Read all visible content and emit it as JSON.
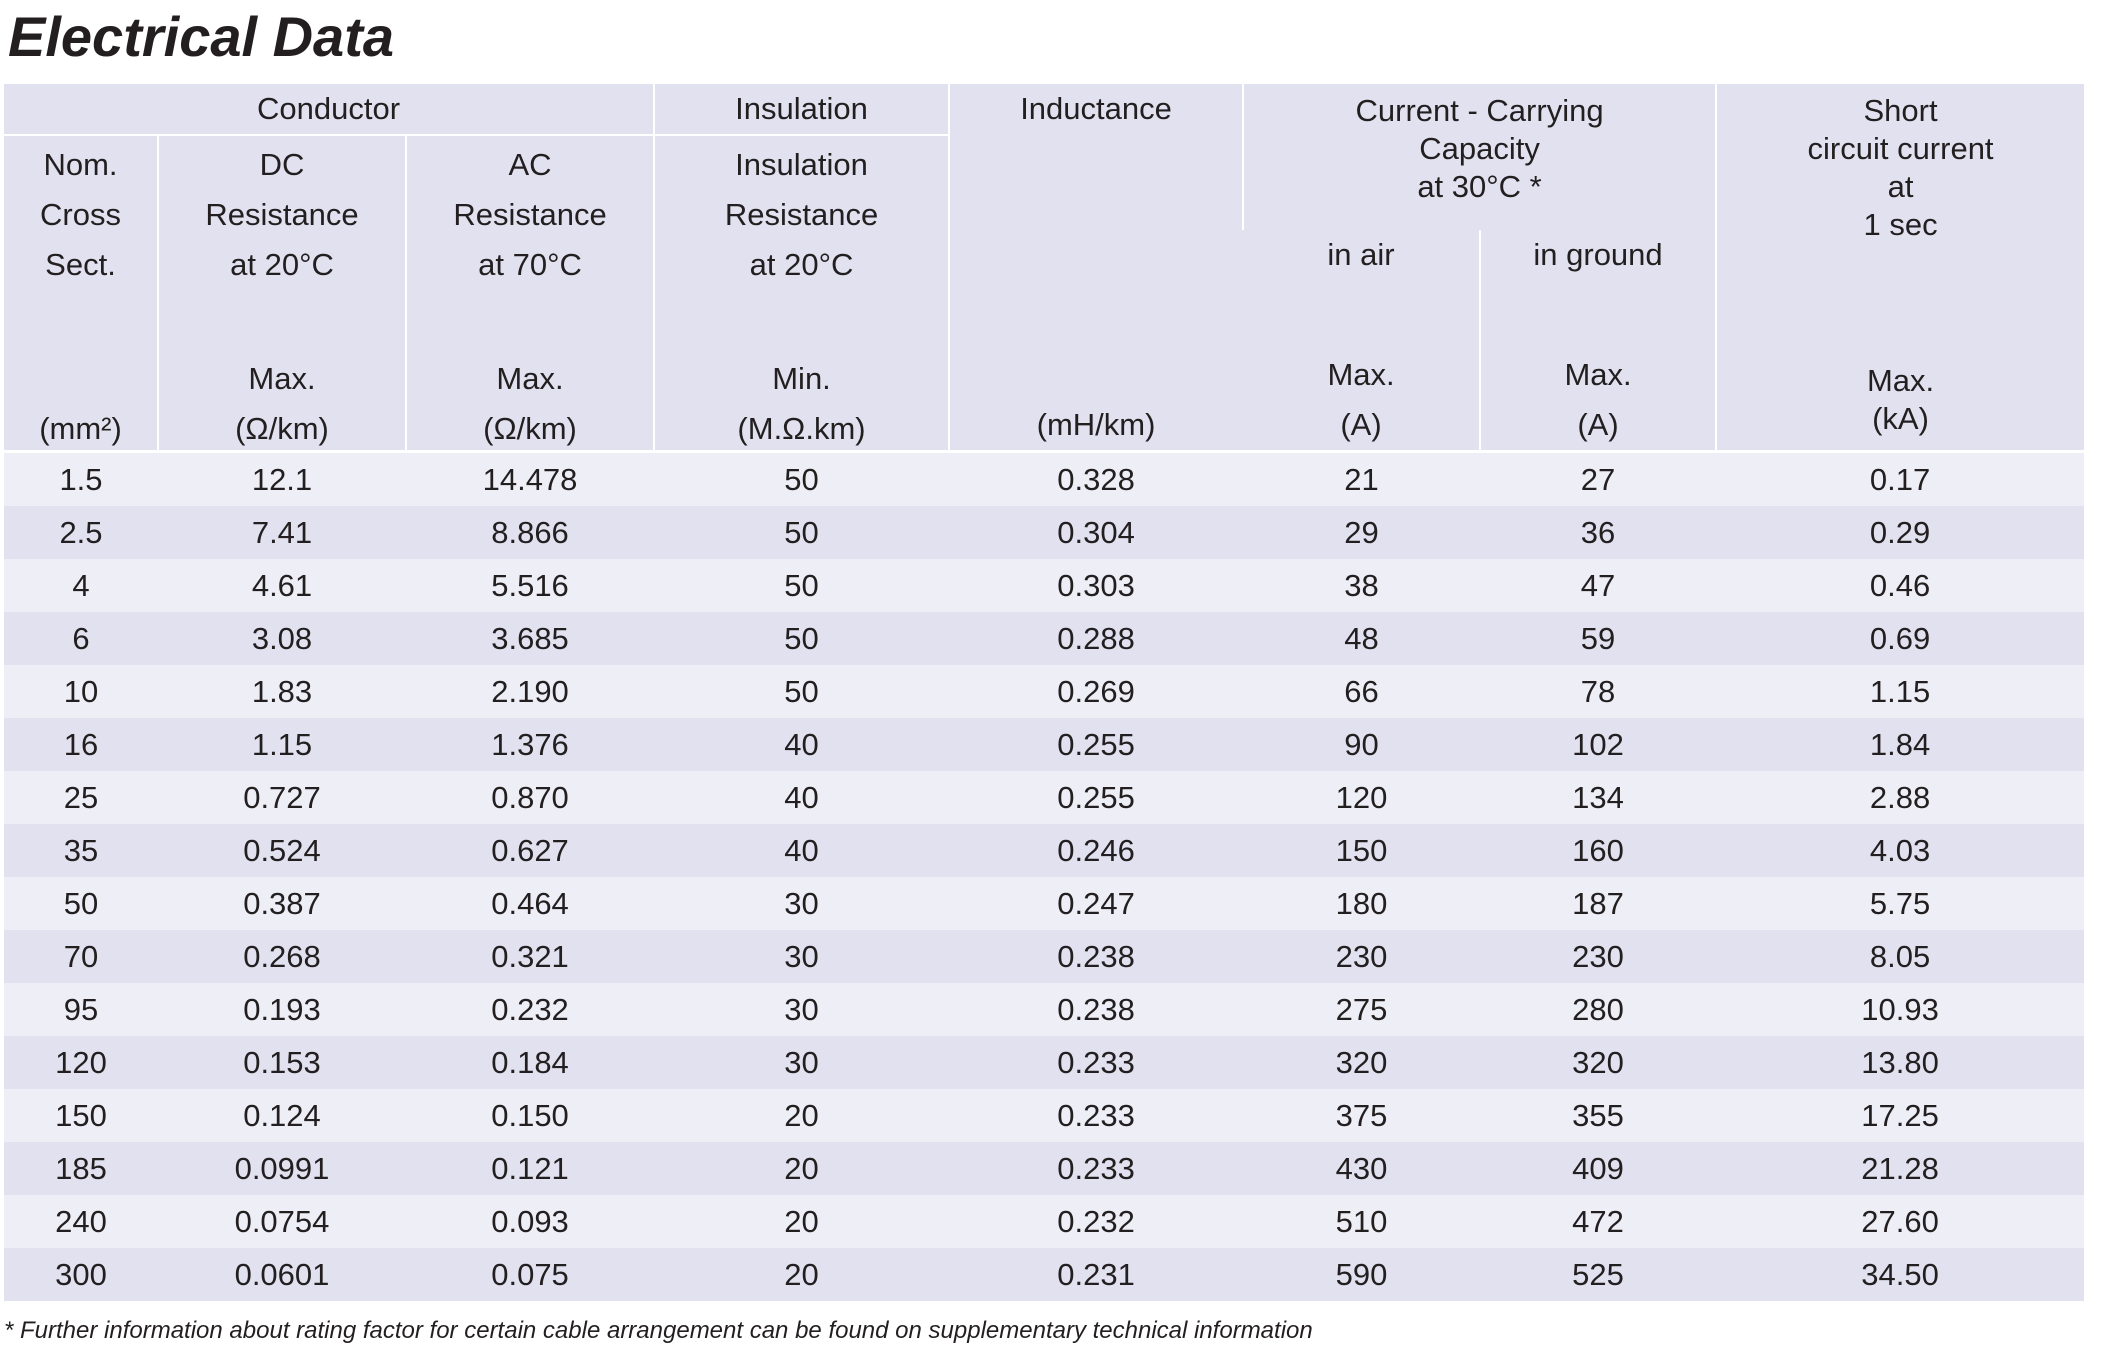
{
  "title": "Electrical Data",
  "headers": {
    "conductor": "Conductor",
    "insulation_group": "Insulation",
    "inductance": "Inductance",
    "current_capacity": [
      "Current - Carrying",
      "Capacity",
      "at 30°C *"
    ],
    "short_circuit": [
      "Short",
      "circuit current",
      "at",
      "1 sec"
    ],
    "nom_cross_sect": [
      "Nom.",
      "Cross",
      "Sect."
    ],
    "dc_resistance": [
      "DC",
      "Resistance",
      "at 20°C"
    ],
    "ac_resistance": [
      "AC",
      "Resistance",
      "at 70°C"
    ],
    "insulation_resistance": [
      "Insulation",
      "Resistance",
      "at 20°C"
    ],
    "in_air": "in air",
    "in_ground": "in ground"
  },
  "qualifiers": {
    "nom_cross_sect": "",
    "dc_resistance": "Max.",
    "ac_resistance": "Max.",
    "insulation_resistance": "Min.",
    "inductance": "",
    "in_air": "Max.",
    "in_ground": "Max.",
    "short_circuit": "Max."
  },
  "units": {
    "nom_cross_sect": "(mm²)",
    "dc_resistance": "(Ω/km)",
    "ac_resistance": "(Ω/km)",
    "insulation_resistance": "(M.Ω.km)",
    "inductance": "(mH/km)",
    "in_air": "(A)",
    "in_ground": "(A)",
    "short_circuit": "(kA)"
  },
  "rows": [
    [
      "1.5",
      "12.1",
      "14.478",
      "50",
      "0.328",
      "21",
      "27",
      "0.17"
    ],
    [
      "2.5",
      "7.41",
      "8.866",
      "50",
      "0.304",
      "29",
      "36",
      "0.29"
    ],
    [
      "4",
      "4.61",
      "5.516",
      "50",
      "0.303",
      "38",
      "47",
      "0.46"
    ],
    [
      "6",
      "3.08",
      "3.685",
      "50",
      "0.288",
      "48",
      "59",
      "0.69"
    ],
    [
      "10",
      "1.83",
      "2.190",
      "50",
      "0.269",
      "66",
      "78",
      "1.15"
    ],
    [
      "16",
      "1.15",
      "1.376",
      "40",
      "0.255",
      "90",
      "102",
      "1.84"
    ],
    [
      "25",
      "0.727",
      "0.870",
      "40",
      "0.255",
      "120",
      "134",
      "2.88"
    ],
    [
      "35",
      "0.524",
      "0.627",
      "40",
      "0.246",
      "150",
      "160",
      "4.03"
    ],
    [
      "50",
      "0.387",
      "0.464",
      "30",
      "0.247",
      "180",
      "187",
      "5.75"
    ],
    [
      "70",
      "0.268",
      "0.321",
      "30",
      "0.238",
      "230",
      "230",
      "8.05"
    ],
    [
      "95",
      "0.193",
      "0.232",
      "30",
      "0.238",
      "275",
      "280",
      "10.93"
    ],
    [
      "120",
      "0.153",
      "0.184",
      "30",
      "0.233",
      "320",
      "320",
      "13.80"
    ],
    [
      "150",
      "0.124",
      "0.150",
      "20",
      "0.233",
      "375",
      "355",
      "17.25"
    ],
    [
      "185",
      "0.0991",
      "0.121",
      "20",
      "0.233",
      "430",
      "409",
      "21.28"
    ],
    [
      "240",
      "0.0754",
      "0.093",
      "20",
      "0.232",
      "510",
      "472",
      "27.60"
    ],
    [
      "300",
      "0.0601",
      "0.075",
      "20",
      "0.231",
      "590",
      "525",
      "34.50"
    ]
  ],
  "footnote": "* Further information about rating factor for certain cable arrangement can be found on supplementary technical information"
}
